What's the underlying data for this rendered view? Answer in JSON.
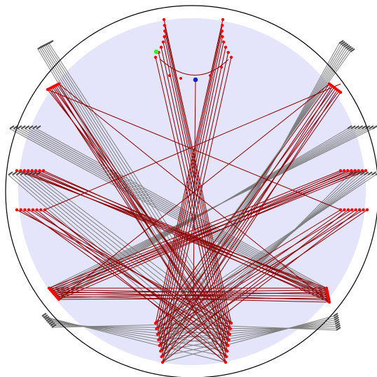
{
  "diagram": {
    "colors": {
      "background": "#ffffff",
      "disk_fill": "#e4e4fb",
      "outer_ring": "#000000",
      "gray_ray": "#7f7f7f",
      "red_ray": "#8b0000",
      "vertex": "#ff0000",
      "gray_tip": "#4d4d4d",
      "origin_point": "#1f1fc8",
      "highlight_point": "#33ee33"
    },
    "points": [
      {
        "name": "origin-point",
        "role": "origin"
      },
      {
        "name": "highlight-point",
        "role": "highlight"
      }
    ]
  }
}
